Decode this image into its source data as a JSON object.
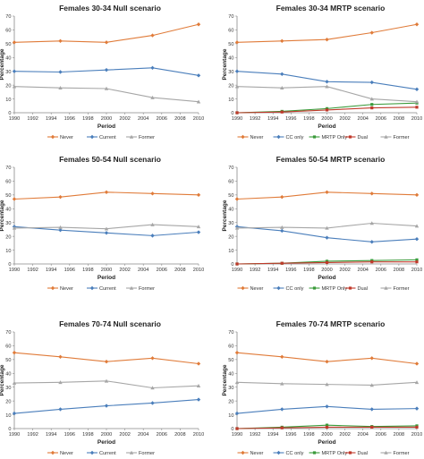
{
  "chart_data": [
    {
      "type": "line",
      "title": "Females 30-34 Null scenario",
      "xlabel": "Period",
      "ylabel": "Percentage",
      "xlim": [
        1990,
        2010
      ],
      "ylim": [
        0,
        70
      ],
      "xticks": [
        1990,
        1992,
        1994,
        1996,
        1998,
        2000,
        2002,
        2004,
        2006,
        2008,
        2010
      ],
      "yticks": [
        0,
        10,
        20,
        30,
        40,
        50,
        60,
        70
      ],
      "legend_position": "bottom",
      "series": [
        {
          "name": "Never",
          "color": "#e07b39",
          "points": [
            [
              1990,
              51
            ],
            [
              1995,
              52
            ],
            [
              2000,
              51
            ],
            [
              2005,
              56
            ],
            [
              2010,
              64
            ]
          ]
        },
        {
          "name": "Current",
          "color": "#4a7ebb",
          "points": [
            [
              1990,
              30
            ],
            [
              1995,
              29.5
            ],
            [
              2000,
              31
            ],
            [
              2005,
              32.5
            ],
            [
              2010,
              27
            ]
          ]
        },
        {
          "name": "Former",
          "color": "#a6a6a6",
          "points": [
            [
              1990,
              19
            ],
            [
              1995,
              18
            ],
            [
              2000,
              17.5
            ],
            [
              2005,
              11
            ],
            [
              2010,
              8
            ]
          ]
        }
      ]
    },
    {
      "type": "line",
      "title": "Females 30-34 MRTP scenario",
      "xlabel": "Period",
      "ylabel": "Percentage",
      "xlim": [
        1990,
        2010
      ],
      "ylim": [
        0,
        70
      ],
      "xticks": [
        1990,
        1992,
        1994,
        1996,
        1998,
        2000,
        2002,
        2004,
        2006,
        2008,
        2010
      ],
      "yticks": [
        0,
        10,
        20,
        30,
        40,
        50,
        60,
        70
      ],
      "legend_position": "bottom",
      "series": [
        {
          "name": "Never",
          "color": "#e07b39",
          "points": [
            [
              1990,
              51
            ],
            [
              1995,
              52
            ],
            [
              2000,
              53
            ],
            [
              2005,
              58
            ],
            [
              2010,
              64
            ]
          ]
        },
        {
          "name": "CC only",
          "color": "#4a7ebb",
          "points": [
            [
              1990,
              30
            ],
            [
              1995,
              28
            ],
            [
              2000,
              22.5
            ],
            [
              2005,
              22
            ],
            [
              2010,
              17
            ]
          ]
        },
        {
          "name": "MRTP Only",
          "color": "#3a9a3a",
          "points": [
            [
              1990,
              0
            ],
            [
              1995,
              1
            ],
            [
              2000,
              3
            ],
            [
              2005,
              6
            ],
            [
              2010,
              7
            ]
          ]
        },
        {
          "name": "Dual",
          "color": "#c0392b",
          "points": [
            [
              1990,
              0
            ],
            [
              1995,
              0.5
            ],
            [
              2000,
              2
            ],
            [
              2005,
              3.5
            ],
            [
              2010,
              4
            ]
          ]
        },
        {
          "name": "Former",
          "color": "#a6a6a6",
          "points": [
            [
              1990,
              19
            ],
            [
              1995,
              18
            ],
            [
              2000,
              19
            ],
            [
              2005,
              10
            ],
            [
              2010,
              8
            ]
          ]
        }
      ]
    },
    {
      "type": "line",
      "title": "Females 50-54 Null scenario",
      "xlabel": "Period",
      "ylabel": "Percentage",
      "xlim": [
        1990,
        2010
      ],
      "ylim": [
        0,
        70
      ],
      "xticks": [
        1990,
        1992,
        1994,
        1996,
        1998,
        2000,
        2002,
        2004,
        2006,
        2008,
        2010
      ],
      "yticks": [
        0,
        10,
        20,
        30,
        40,
        50,
        60,
        70
      ],
      "legend_position": "bottom",
      "series": [
        {
          "name": "Never",
          "color": "#e07b39",
          "points": [
            [
              1990,
              47
            ],
            [
              1995,
              48.5
            ],
            [
              2000,
              52
            ],
            [
              2005,
              51
            ],
            [
              2010,
              50
            ]
          ]
        },
        {
          "name": "Current",
          "color": "#4a7ebb",
          "points": [
            [
              1990,
              27
            ],
            [
              1995,
              24.5
            ],
            [
              2000,
              22.5
            ],
            [
              2005,
              20.5
            ],
            [
              2010,
              23
            ]
          ]
        },
        {
          "name": "Former",
          "color": "#a6a6a6",
          "points": [
            [
              1990,
              26
            ],
            [
              1995,
              26.5
            ],
            [
              2000,
              25.5
            ],
            [
              2005,
              28.5
            ],
            [
              2010,
              27
            ]
          ]
        }
      ]
    },
    {
      "type": "line",
      "title": "Females 50-54 MRTP scenario",
      "xlabel": "Period",
      "ylabel": "Percentage",
      "xlim": [
        1990,
        2010
      ],
      "ylim": [
        0,
        70
      ],
      "xticks": [
        1990,
        1992,
        1994,
        1996,
        1998,
        2000,
        2002,
        2004,
        2006,
        2008,
        2010
      ],
      "yticks": [
        0,
        10,
        20,
        30,
        40,
        50,
        60,
        70
      ],
      "legend_position": "bottom",
      "series": [
        {
          "name": "Never",
          "color": "#e07b39",
          "points": [
            [
              1990,
              47
            ],
            [
              1995,
              48.5
            ],
            [
              2000,
              52
            ],
            [
              2005,
              51
            ],
            [
              2010,
              50
            ]
          ]
        },
        {
          "name": "CC only",
          "color": "#4a7ebb",
          "points": [
            [
              1990,
              27
            ],
            [
              1995,
              24
            ],
            [
              2000,
              19
            ],
            [
              2005,
              16
            ],
            [
              2010,
              18
            ]
          ]
        },
        {
          "name": "MRTP Only",
          "color": "#3a9a3a",
          "points": [
            [
              1990,
              0
            ],
            [
              1995,
              0.5
            ],
            [
              2000,
              2
            ],
            [
              2005,
              2.5
            ],
            [
              2010,
              3
            ]
          ]
        },
        {
          "name": "Dual",
          "color": "#c0392b",
          "points": [
            [
              1990,
              0
            ],
            [
              1995,
              0.5
            ],
            [
              2000,
              1
            ],
            [
              2005,
              1.5
            ],
            [
              2010,
              1.5
            ]
          ]
        },
        {
          "name": "Former",
          "color": "#a6a6a6",
          "points": [
            [
              1990,
              26
            ],
            [
              1995,
              26.5
            ],
            [
              2000,
              26
            ],
            [
              2005,
              29.5
            ],
            [
              2010,
              27.5
            ]
          ]
        }
      ]
    },
    {
      "type": "line",
      "title": "Females 70-74 Null scenario",
      "xlabel": "Period",
      "ylabel": "Percentage",
      "xlim": [
        1990,
        2010
      ],
      "ylim": [
        0,
        70
      ],
      "xticks": [
        1990,
        1992,
        1994,
        1996,
        1998,
        2000,
        2002,
        2004,
        2006,
        2008,
        2010
      ],
      "yticks": [
        0,
        10,
        20,
        30,
        40,
        50,
        60,
        70
      ],
      "legend_position": "bottom",
      "series": [
        {
          "name": "Never",
          "color": "#e07b39",
          "points": [
            [
              1990,
              55
            ],
            [
              1995,
              52
            ],
            [
              2000,
              48.5
            ],
            [
              2005,
              51
            ],
            [
              2010,
              47
            ]
          ]
        },
        {
          "name": "Current",
          "color": "#4a7ebb",
          "points": [
            [
              1990,
              11
            ],
            [
              1995,
              14
            ],
            [
              2000,
              16.5
            ],
            [
              2005,
              18.5
            ],
            [
              2010,
              21
            ]
          ]
        },
        {
          "name": "Former",
          "color": "#a6a6a6",
          "points": [
            [
              1990,
              33
            ],
            [
              1995,
              33.5
            ],
            [
              2000,
              34.5
            ],
            [
              2005,
              29.5
            ],
            [
              2010,
              31
            ]
          ]
        }
      ]
    },
    {
      "type": "line",
      "title": "Females 70-74 MRTP scenario",
      "xlabel": "Period",
      "ylabel": "Percentage",
      "xlim": [
        1990,
        2010
      ],
      "ylim": [
        0,
        70
      ],
      "xticks": [
        1990,
        1992,
        1994,
        1996,
        1998,
        2000,
        2002,
        2004,
        2006,
        2008,
        2010
      ],
      "yticks": [
        0,
        10,
        20,
        30,
        40,
        50,
        60,
        70
      ],
      "legend_position": "bottom",
      "series": [
        {
          "name": "Never",
          "color": "#e07b39",
          "points": [
            [
              1990,
              55
            ],
            [
              1995,
              52
            ],
            [
              2000,
              48.5
            ],
            [
              2005,
              51
            ],
            [
              2010,
              47
            ]
          ]
        },
        {
          "name": "CC only",
          "color": "#4a7ebb",
          "points": [
            [
              1990,
              11
            ],
            [
              1995,
              14
            ],
            [
              2000,
              16
            ],
            [
              2005,
              14
            ],
            [
              2010,
              14.5
            ]
          ]
        },
        {
          "name": "MRTP Only",
          "color": "#3a9a3a",
          "points": [
            [
              1990,
              0
            ],
            [
              1995,
              1
            ],
            [
              2000,
              2.5
            ],
            [
              2005,
              1.5
            ],
            [
              2010,
              2
            ]
          ]
        },
        {
          "name": "Dual",
          "color": "#c0392b",
          "points": [
            [
              1990,
              0
            ],
            [
              1995,
              0.5
            ],
            [
              2000,
              1
            ],
            [
              2005,
              1
            ],
            [
              2010,
              1
            ]
          ]
        },
        {
          "name": "Former",
          "color": "#a6a6a6",
          "points": [
            [
              1990,
              33.5
            ],
            [
              1995,
              32.5
            ],
            [
              2000,
              32
            ],
            [
              2005,
              31.5
            ],
            [
              2010,
              33.5
            ]
          ]
        }
      ]
    }
  ]
}
